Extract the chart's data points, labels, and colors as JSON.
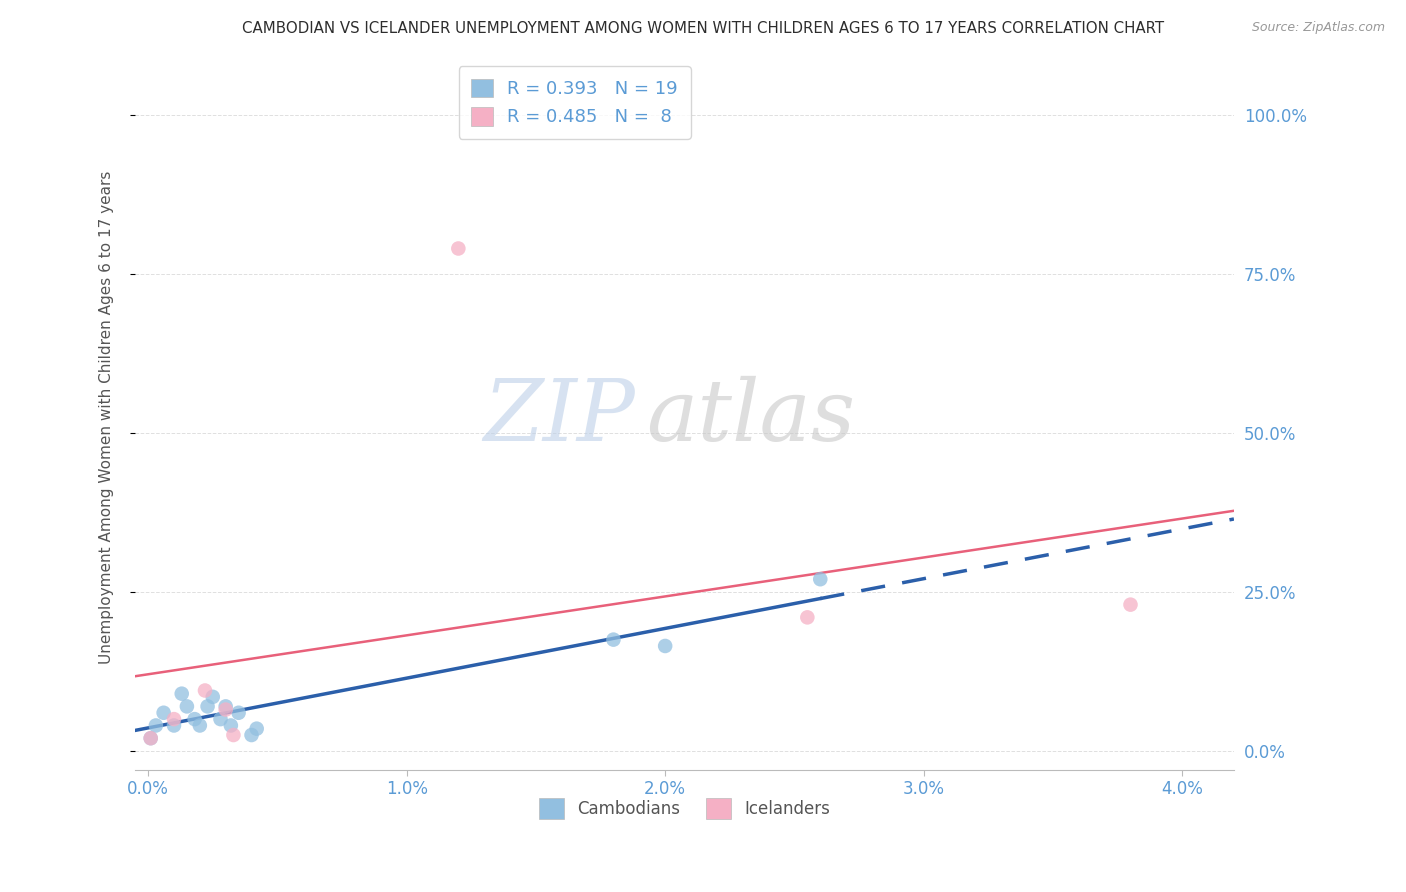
{
  "title": "CAMBODIAN VS ICELANDER UNEMPLOYMENT AMONG WOMEN WITH CHILDREN AGES 6 TO 17 YEARS CORRELATION CHART",
  "source": "Source: ZipAtlas.com",
  "ylabel": "Unemployment Among Women with Children Ages 6 to 17 years",
  "xlim": [
    -0.0005,
    0.042
  ],
  "ylim": [
    -0.03,
    1.08
  ],
  "xlabel_vals": [
    0.0,
    0.01,
    0.02,
    0.03,
    0.04
  ],
  "xlabel_labels": [
    "0.0%",
    "1.0%",
    "2.0%",
    "3.0%",
    "4.0%"
  ],
  "ylabel_vals": [
    0.0,
    0.25,
    0.5,
    0.75,
    1.0
  ],
  "ylabel_labels": [
    "0.0%",
    "25.0%",
    "50.0%",
    "75.0%",
    "100.0%"
  ],
  "cambodian_x": [
    0.0001,
    0.0003,
    0.0006,
    0.001,
    0.0013,
    0.0015,
    0.0018,
    0.002,
    0.0023,
    0.0025,
    0.0028,
    0.003,
    0.0032,
    0.0035,
    0.004,
    0.0042,
    0.018,
    0.02,
    0.026
  ],
  "cambodian_y": [
    0.02,
    0.04,
    0.06,
    0.04,
    0.09,
    0.07,
    0.05,
    0.04,
    0.07,
    0.085,
    0.05,
    0.07,
    0.04,
    0.06,
    0.025,
    0.035,
    0.175,
    0.165,
    0.27
  ],
  "icelander_x": [
    0.0001,
    0.001,
    0.0022,
    0.003,
    0.0033,
    0.012,
    0.0255,
    0.038
  ],
  "icelander_y": [
    0.02,
    0.05,
    0.095,
    0.065,
    0.025,
    0.79,
    0.21,
    0.23
  ],
  "cambodian_dot_color": "#92bfe0",
  "icelander_dot_color": "#f5b0c5",
  "cambodian_line_color": "#2b5faa",
  "icelander_line_color": "#e8607a",
  "r_cambodian": "0.393",
  "n_cambodian": "19",
  "r_icelander": "0.485",
  "n_icelander": "8",
  "watermark_zip": "ZIP",
  "watermark_atlas": "atlas",
  "axis_label_color": "#5b9bd5",
  "title_color": "#2d2d2d",
  "grid_color": "#e0e0e0",
  "marker_size": 110,
  "cam_line_solid_end": 0.026,
  "cam_trend_lw": 2.5,
  "ice_trend_lw": 1.8
}
